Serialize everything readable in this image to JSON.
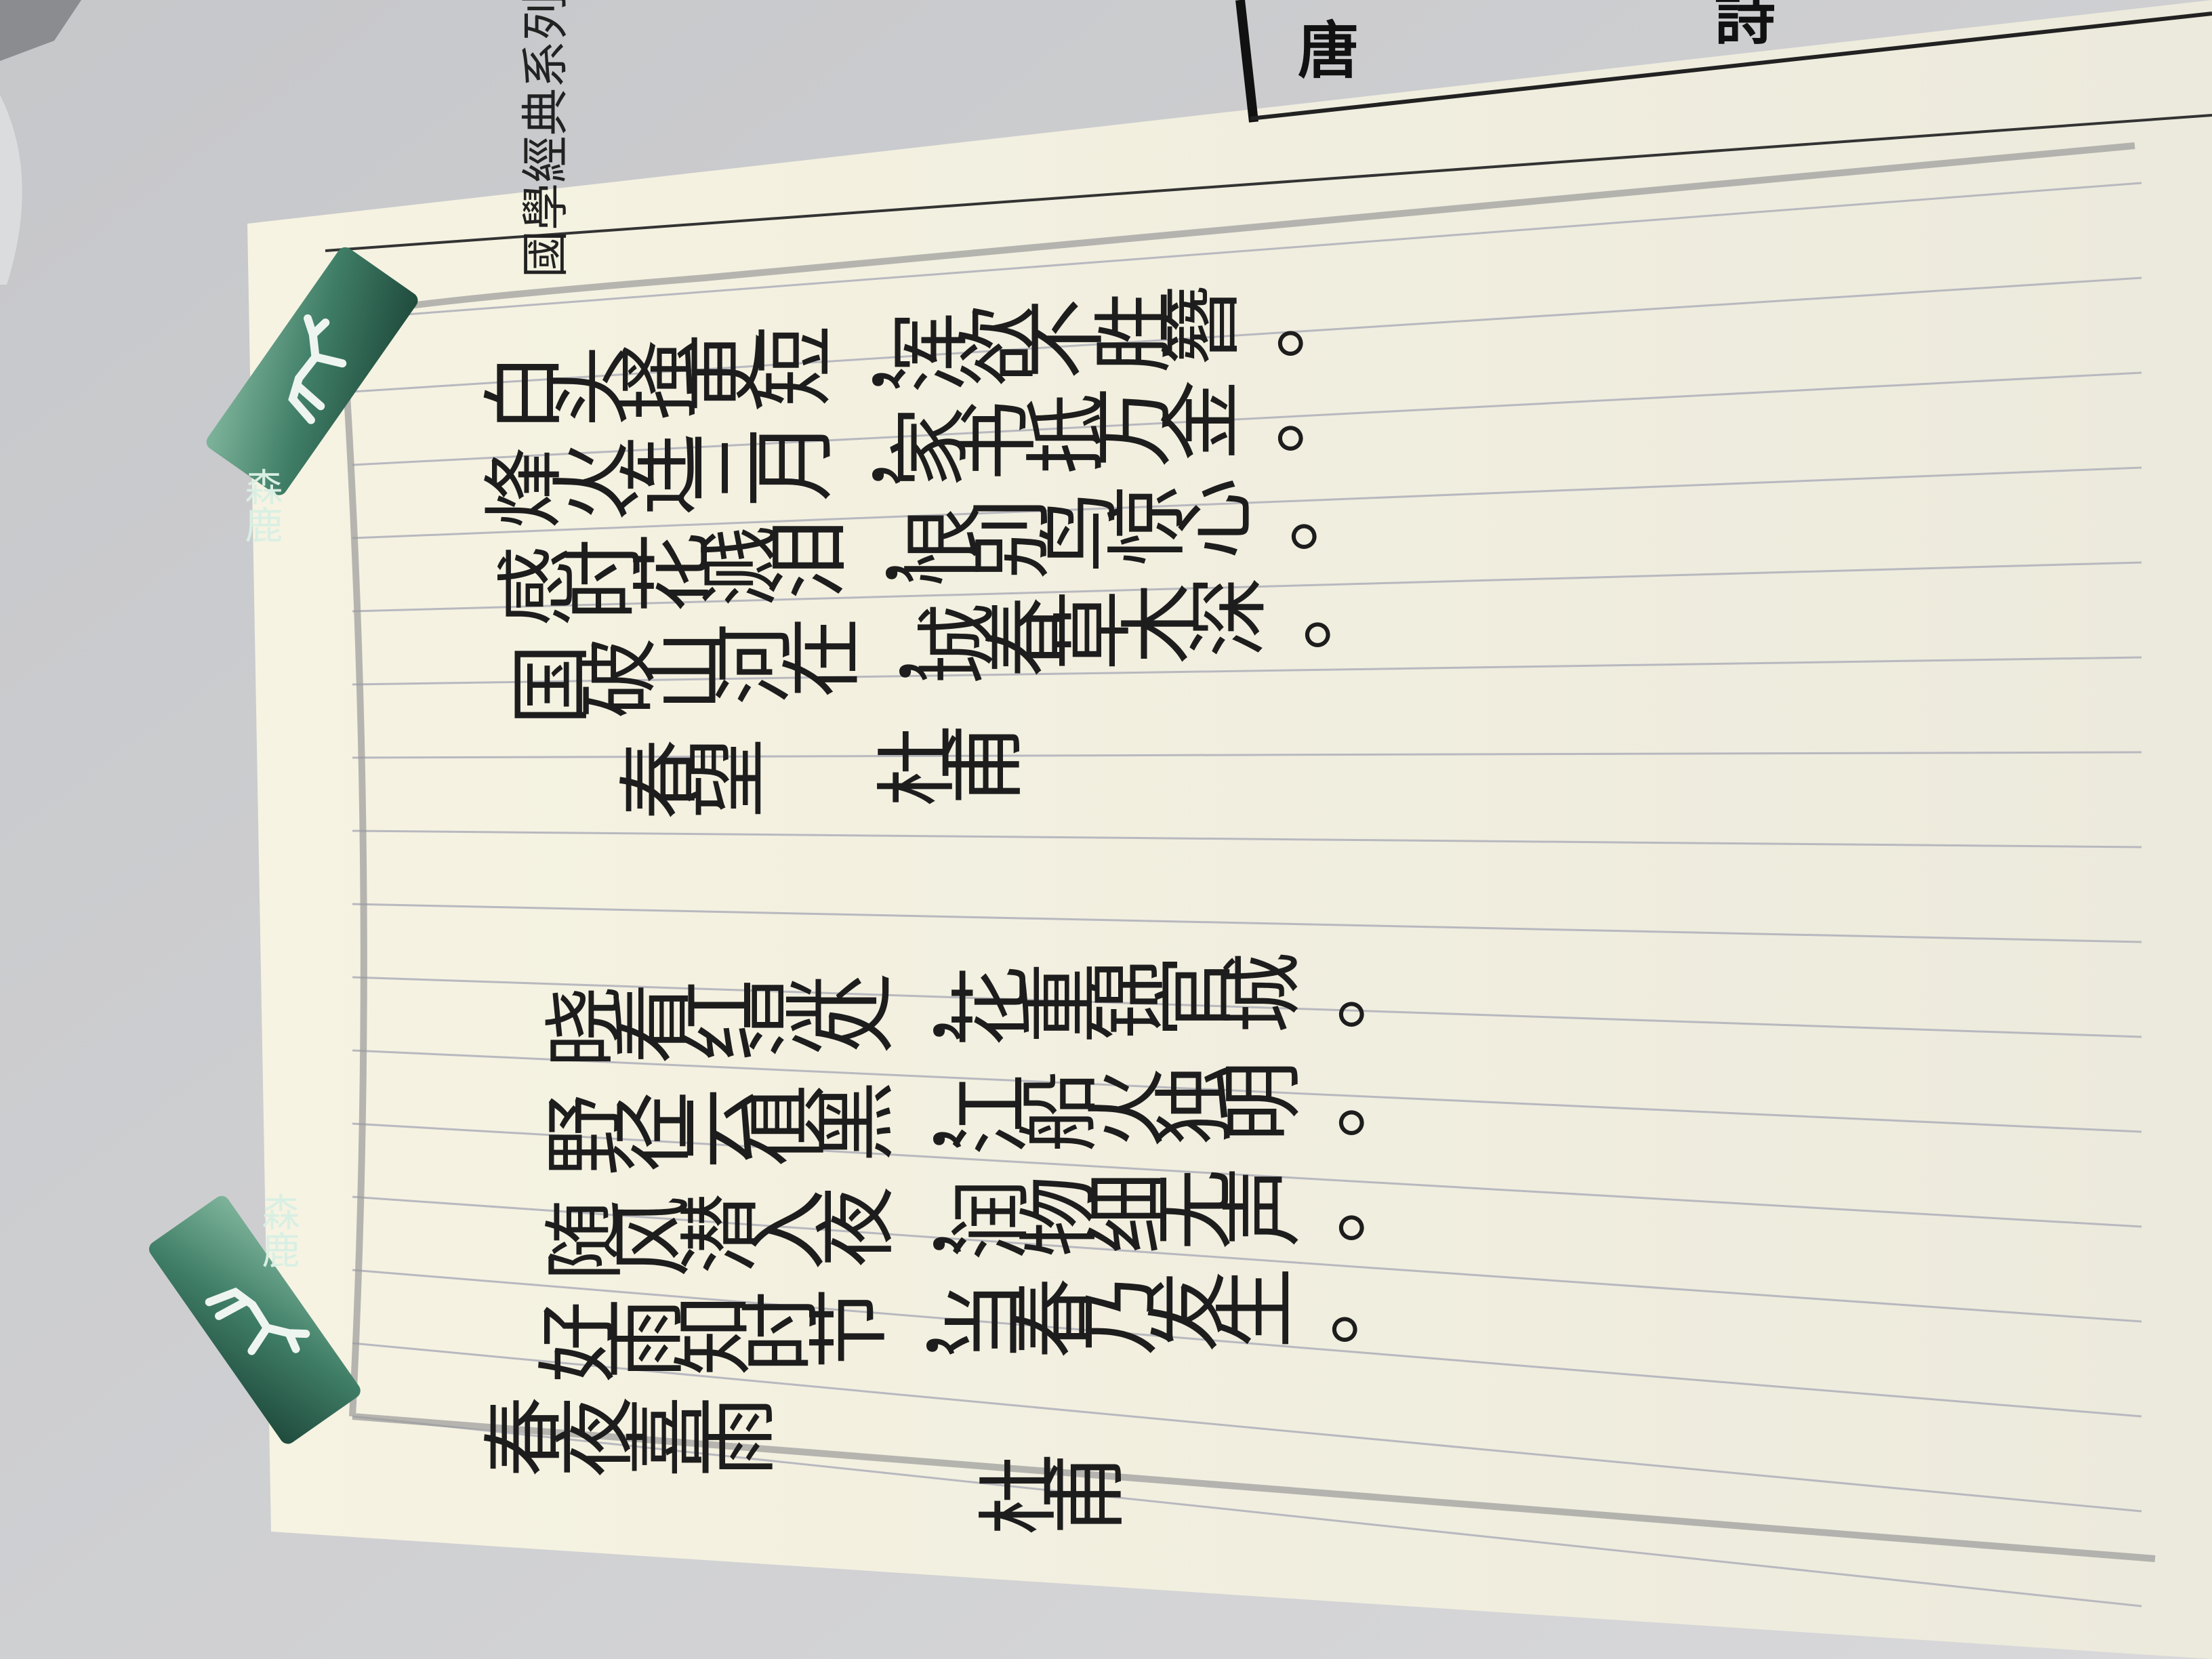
{
  "series_label": "國學經典系列",
  "corner_text": [
    "唐",
    "詩"
  ],
  "poems": [
    {
      "title": "春望",
      "author": "杜甫",
      "lines": [
        "国破山河在，城春草木深。",
        "感时花溅泪，恨别鸟惊心。",
        "烽火连三月，家书抵万金。",
        "白头搔更短，浑欲不胜簪。"
      ]
    },
    {
      "title": "春夜喜雨",
      "author": "杜甫",
      "lines": [
        "好雨知时节，当春乃发生。",
        "随风潜入夜，润物细无声。",
        "野径云俱黑，江船火独明。",
        "晓看红湿处，花重锦官城。"
      ]
    }
  ],
  "bookmarks": [
    {
      "label": "森鹿",
      "color": "#3f7d66"
    },
    {
      "label": "森鹿",
      "color": "#3f7d66"
    }
  ],
  "colors": {
    "paper": "#f4f2e4",
    "ink": "#1d1d1d",
    "desk": "#cfd0d2",
    "rule": "#b8b8bf"
  }
}
